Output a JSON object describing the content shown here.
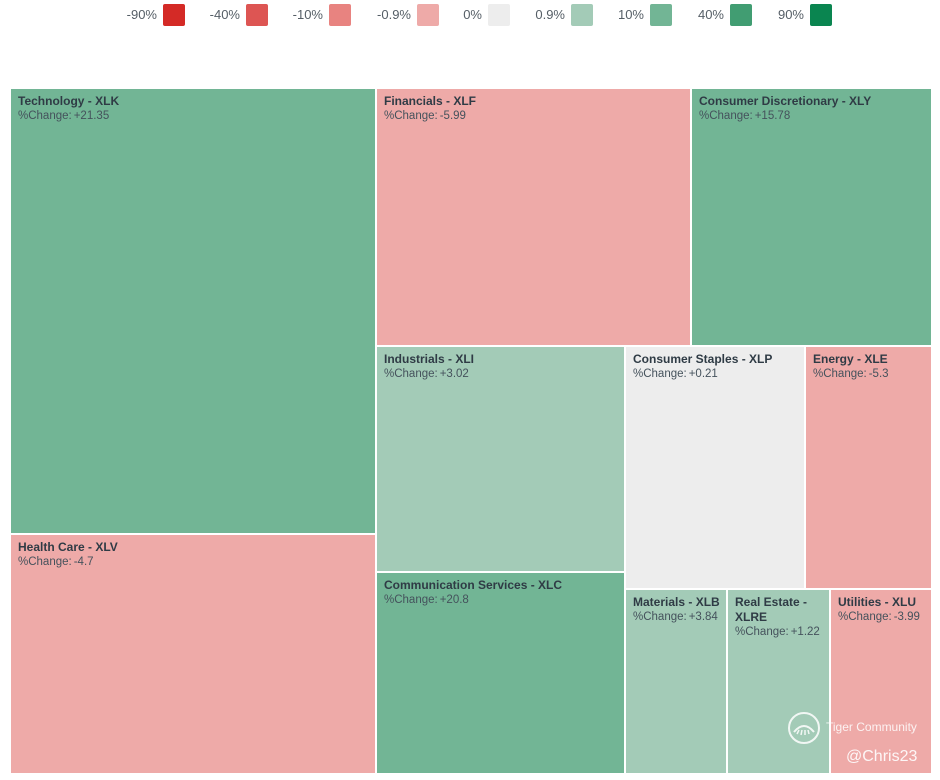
{
  "chart_data": {
    "type": "treemap",
    "legend": {
      "items": [
        {
          "label": "-90%",
          "color": "#d42a26"
        },
        {
          "label": "-40%",
          "color": "#dd5553"
        },
        {
          "label": "-10%",
          "color": "#e88380"
        },
        {
          "label": "-0.9%",
          "color": "#eeaaa8"
        },
        {
          "label": "0%",
          "color": "#ededed"
        },
        {
          "label": "0.9%",
          "color": "#a3cbb7"
        },
        {
          "label": "10%",
          "color": "#72b595"
        },
        {
          "label": "40%",
          "color": "#419d72"
        },
        {
          "label": "90%",
          "color": "#0a8550"
        }
      ]
    },
    "change_label": "%Change:",
    "sectors": [
      {
        "name": "Technology - XLK",
        "change": "+21.35",
        "color": "#72b595"
      },
      {
        "name": "Health Care - XLV",
        "change": "-4.7",
        "color": "#eeaaa8"
      },
      {
        "name": "Financials - XLF",
        "change": "-5.99",
        "color": "#eeaaa8"
      },
      {
        "name": "Consumer Discretionary - XLY",
        "change": "+15.78",
        "color": "#72b595"
      },
      {
        "name": "Industrials - XLI",
        "change": "+3.02",
        "color": "#a3cbb7"
      },
      {
        "name": "Communication Services - XLC",
        "change": "+20.8",
        "color": "#72b595"
      },
      {
        "name": "Consumer Staples - XLP",
        "change": "+0.21",
        "color": "#ededed"
      },
      {
        "name": "Energy - XLE",
        "change": "-5.3",
        "color": "#eeaaa8"
      },
      {
        "name": "Materials - XLB",
        "change": "+3.84",
        "color": "#a3cbb7"
      },
      {
        "name": "Real Estate - XLRE",
        "change": "+1.22",
        "color": "#a3cbb7"
      },
      {
        "name": "Utilities - XLU",
        "change": "-3.99",
        "color": "#eeaaa8"
      }
    ]
  },
  "watermark": {
    "brand": "Tiger Community",
    "handle": "@Chris23"
  }
}
